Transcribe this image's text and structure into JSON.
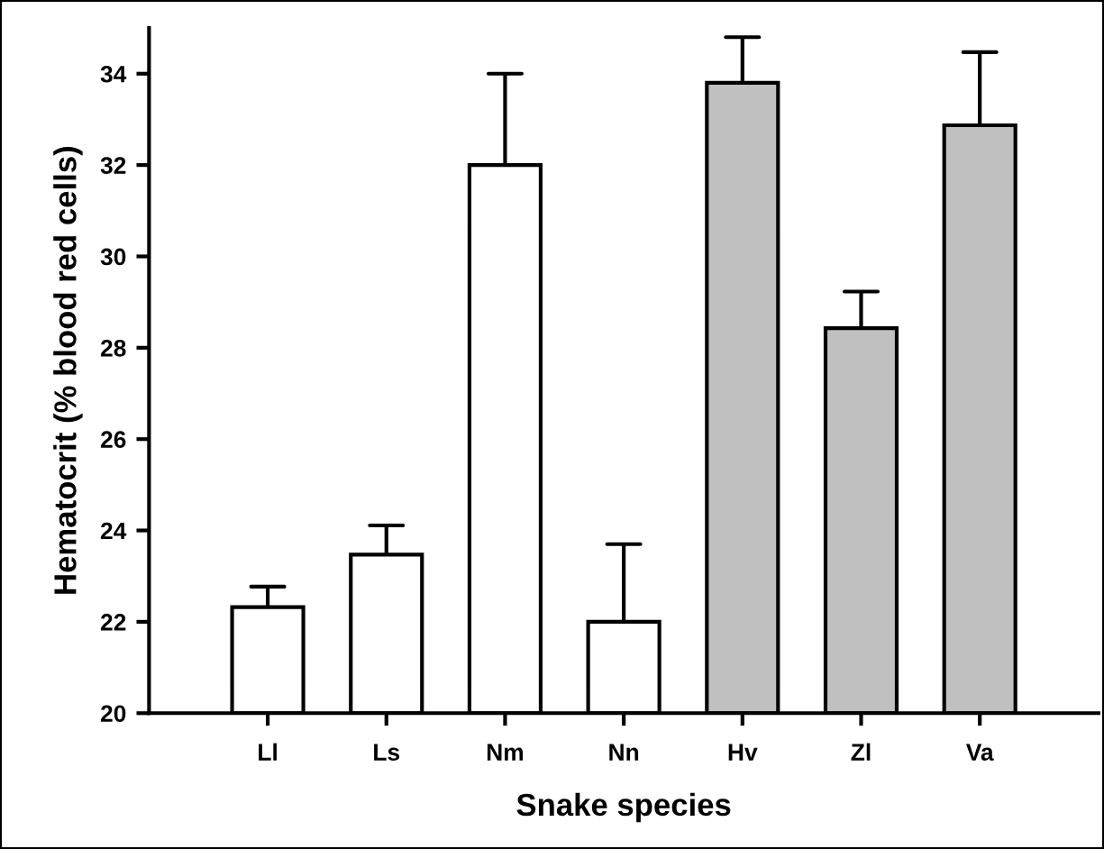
{
  "chart_data": {
    "type": "bar",
    "xlabel": "Snake species",
    "ylabel": "Hematocrit (% blood red cells)",
    "categories": [
      "Ll",
      "Ls",
      "Nm",
      "Nn",
      "Hv",
      "Zl",
      "Va"
    ],
    "values": [
      22.32,
      23.47,
      32.0,
      22.0,
      33.8,
      28.43,
      32.87
    ],
    "errors": [
      [
        22.32,
        22.77
      ],
      [
        23.47,
        24.11
      ],
      [
        32.0,
        34.0
      ],
      [
        22.0,
        23.7
      ],
      [
        33.8,
        34.8
      ],
      [
        28.43,
        29.23
      ],
      [
        32.87,
        34.47
      ]
    ],
    "colors": [
      "#ffffff",
      "#ffffff",
      "#ffffff",
      "#ffffff",
      "#c0c0c0",
      "#c0c0c0",
      "#c0c0c0"
    ],
    "ylim": [
      20,
      35
    ],
    "yticks": [
      20,
      22,
      24,
      26,
      28,
      30,
      32,
      34
    ],
    "grid": false,
    "legend": false
  }
}
